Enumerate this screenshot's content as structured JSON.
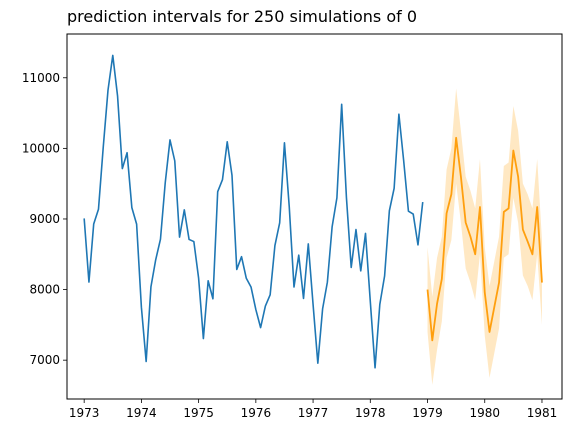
{
  "chart_data": {
    "type": "line",
    "title": "prediction intervals for 250 simulations of 0",
    "xlabel": "",
    "ylabel": "",
    "xlim": [
      1972.7,
      1981.35
    ],
    "ylim": [
      6450,
      11620
    ],
    "x_ticks": [
      1973,
      1974,
      1975,
      1976,
      1977,
      1978,
      1979,
      1980,
      1981
    ],
    "x_tick_labels": [
      "1973",
      "1974",
      "1975",
      "1976",
      "1977",
      "1978",
      "1979",
      "1980",
      "1981"
    ],
    "y_ticks": [
      7000,
      8000,
      9000,
      10000,
      11000
    ],
    "y_tick_labels": [
      "7000",
      "8000",
      "9000",
      "10000",
      "11000"
    ],
    "grid": false,
    "legend": "none",
    "series": [
      {
        "kind": "line",
        "color": "#1f77b4",
        "x_start": 1973,
        "x_step": 0.08333,
        "values": [
          9007,
          8106,
          8928,
          9137,
          10017,
          10826,
          11317,
          10744,
          9713,
          9938,
          9161,
          8927,
          7750,
          6981,
          8038,
          8422,
          8714,
          9512,
          10120,
          9823,
          8743,
          9129,
          8710,
          8680,
          8162,
          7306,
          8124,
          7870,
          9387,
          9556,
          10093,
          9620,
          8285,
          8466,
          8160,
          8034,
          7717,
          7461,
          7767,
          7925,
          8623,
          8945,
          10078,
          9179,
          8037,
          8488,
          7874,
          8647,
          7792,
          6957,
          7726,
          8106,
          8890,
          9299,
          10625,
          9302,
          8314,
          8850,
          8265,
          8796,
          7836,
          6892,
          7791,
          8192,
          9115,
          9434,
          10484,
          9827,
          9110,
          9070,
          8633,
          9240
        ]
      },
      {
        "kind": "forecast",
        "color": "#ff9f0e",
        "band_color": "#ffe4b8",
        "x_start": 1979,
        "x_step": 0.08333,
        "values": [
          8000,
          7280,
          7800,
          8150,
          9080,
          9350,
          10150,
          9600,
          8950,
          8750,
          8500,
          9170,
          7960,
          7400,
          7750,
          8100,
          9100,
          9150,
          9970,
          9600,
          8850,
          8680,
          8500,
          9170,
          8100
        ],
        "lower": [
          7400,
          6650,
          7150,
          7550,
          8450,
          8700,
          9500,
          8950,
          8300,
          8100,
          7850,
          8500,
          7350,
          6750,
          7100,
          7450,
          8450,
          8500,
          9300,
          8950,
          8200,
          8050,
          7850,
          8500,
          7500
        ],
        "upper": [
          8600,
          7900,
          8450,
          8750,
          9700,
          10000,
          10850,
          10250,
          9600,
          9400,
          9150,
          9850,
          8600,
          8050,
          8400,
          8750,
          9750,
          9800,
          10600,
          10250,
          9500,
          9350,
          9150,
          9850,
          8700
        ]
      }
    ]
  }
}
